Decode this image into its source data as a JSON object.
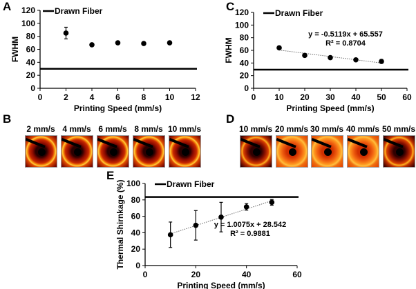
{
  "panels": {
    "A": "A",
    "B": "B",
    "C": "C",
    "D": "D",
    "E": "E"
  },
  "chart_data": [
    {
      "id": "A",
      "type": "scatter",
      "xlabel": "Printing Speed (mm/s)",
      "ylabel": "FWHM",
      "xlim": [
        0,
        12
      ],
      "ylim": [
        0,
        120
      ],
      "xticks": [
        0,
        2,
        4,
        6,
        8,
        10,
        12
      ],
      "yticks": [
        0,
        20,
        40,
        60,
        80,
        100,
        120
      ],
      "legend": {
        "label": "Drawn Fiber",
        "placement": "top-left"
      },
      "reference_line": {
        "name": "Drawn Fiber",
        "y": 30
      },
      "points": [
        {
          "x": 2,
          "y": 85,
          "err": 9
        },
        {
          "x": 4,
          "y": 67,
          "err": 1
        },
        {
          "x": 6,
          "y": 70,
          "err": 1
        },
        {
          "x": 8,
          "y": 69,
          "err": 1
        },
        {
          "x": 10,
          "y": 70,
          "err": 1
        }
      ]
    },
    {
      "id": "C",
      "type": "scatter",
      "xlabel": "Printing Speed (mm/s)",
      "ylabel": "FWHM",
      "xlim": [
        0,
        60
      ],
      "ylim": [
        0,
        120
      ],
      "xticks": [
        0,
        10,
        20,
        30,
        40,
        50,
        60
      ],
      "yticks": [
        0,
        20,
        40,
        60,
        80,
        100,
        120
      ],
      "legend": {
        "label": "Drawn Fiber",
        "placement": "top-left"
      },
      "reference_line": {
        "name": "Drawn Fiber",
        "y": 29.5
      },
      "points": [
        {
          "x": 10,
          "y": 64,
          "err": 1.5
        },
        {
          "x": 20,
          "y": 52,
          "err": 1
        },
        {
          "x": 30,
          "y": 48.5,
          "err": 1.5
        },
        {
          "x": 40,
          "y": 45,
          "err": 1
        },
        {
          "x": 50,
          "y": 42.5,
          "err": 3
        }
      ],
      "trendline": {
        "slope": -0.5119,
        "intercept": 65.557,
        "x_range": [
          10,
          50
        ],
        "equation": "y = -0.5119x + 65.557",
        "r2": "R² = 0.8704"
      }
    },
    {
      "id": "E",
      "type": "scatter",
      "xlabel": "Printing Speed (mm/s)",
      "ylabel": "Thermal Shirnkage (%)",
      "xlim": [
        0,
        60
      ],
      "ylim": [
        0,
        100
      ],
      "xticks": [
        0,
        20,
        40,
        60
      ],
      "yticks": [
        0,
        20,
        40,
        60,
        80,
        100
      ],
      "legend": {
        "label": "Drawn Fiber",
        "placement": "top-left"
      },
      "reference_line": {
        "name": "Drawn Fiber",
        "y": 83.5
      },
      "points": [
        {
          "x": 10,
          "y": 37.5,
          "err": 15.5
        },
        {
          "x": 20,
          "y": 49,
          "err": 18
        },
        {
          "x": 30,
          "y": 59,
          "err": 18
        },
        {
          "x": 40,
          "y": 71.5,
          "err": 4
        },
        {
          "x": 50,
          "y": 77,
          "err": 3.5
        }
      ],
      "trendline": {
        "slope": 1.0075,
        "intercept": 28.542,
        "x_range": [
          10,
          50
        ],
        "equation": "y = 1.0075x + 28.542",
        "r2": "R² = 0.9881"
      }
    }
  ],
  "images_B": [
    {
      "label": "2 mm/s",
      "style": "b"
    },
    {
      "label": "4 mm/s",
      "style": "b"
    },
    {
      "label": "6 mm/s",
      "style": "b"
    },
    {
      "label": "8 mm/s",
      "style": "b"
    },
    {
      "label": "10 mm/s",
      "style": "b"
    }
  ],
  "images_D": [
    {
      "label": "10 mm/s",
      "style": "dark"
    },
    {
      "label": "20 mm/s",
      "style": "bright"
    },
    {
      "label": "30 mm/s",
      "style": "bright"
    },
    {
      "label": "40 mm/s",
      "style": "bright"
    },
    {
      "label": "50 mm/s",
      "style": "dark"
    }
  ]
}
